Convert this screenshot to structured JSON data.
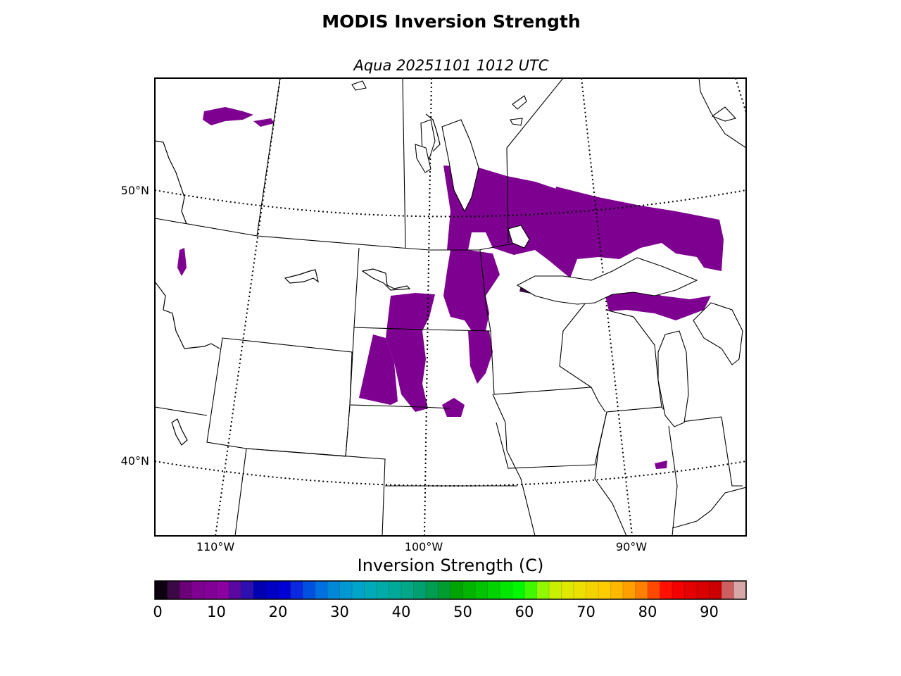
{
  "figure": {
    "title": "MODIS Inversion Strength",
    "subtitle": "Aqua 20251101 1012 UTC"
  },
  "map": {
    "lat_labels": [
      "50°N",
      "40°N"
    ],
    "lon_labels": [
      "110°W",
      "100°W",
      "90°W"
    ],
    "data_color": "#7d0090",
    "data_dark_color": "#3a0845"
  },
  "colorbar": {
    "label": "Inversion Strength (C)",
    "min": 0,
    "max": 98,
    "step": 2,
    "ticks": [
      "0",
      "10",
      "20",
      "30",
      "40",
      "50",
      "60",
      "70",
      "80",
      "90"
    ],
    "colors": [
      "#0d0010",
      "#3b0a45",
      "#6b0078",
      "#7d0090",
      "#820098",
      "#8a00a0",
      "#5a08a0",
      "#2e10b0",
      "#0000b0",
      "#0000c4",
      "#0000d6",
      "#0a28e0",
      "#0050e0",
      "#0070e0",
      "#0088d8",
      "#0098d0",
      "#00a4c8",
      "#00aab8",
      "#00aca8",
      "#00aa98",
      "#00a888",
      "#00a070",
      "#009c50",
      "#009c30",
      "#00a400",
      "#00b400",
      "#00c400",
      "#00d400",
      "#00e800",
      "#00f800",
      "#40f800",
      "#90f800",
      "#c8f000",
      "#e0e800",
      "#ece000",
      "#f4d400",
      "#ffcc00",
      "#ffb800",
      "#ffa000",
      "#ff8000",
      "#ff4800",
      "#ff1000",
      "#f40000",
      "#e40000",
      "#d80000",
      "#cc0000",
      "#cc6060",
      "#d8a8a8"
    ]
  }
}
